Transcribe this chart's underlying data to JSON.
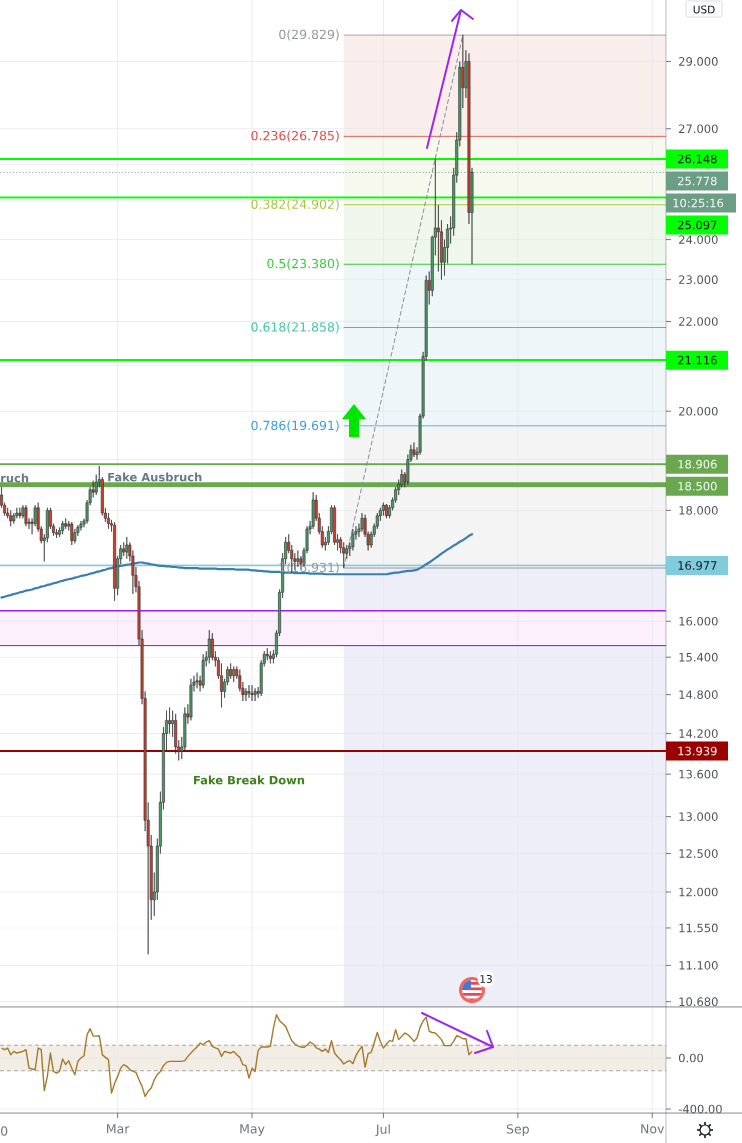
{
  "chart_data": [
    {
      "type": "candlestick",
      "categories": [
        null,
        null,
        null,
        null,
        null,
        null,
        null,
        null,
        null,
        null,
        null,
        null,
        null,
        null,
        null,
        null,
        null,
        null,
        null,
        null,
        null,
        null,
        null,
        null,
        null,
        null,
        null,
        null,
        null,
        null,
        null,
        null,
        null,
        null,
        null,
        null,
        null,
        null,
        null,
        null,
        null,
        null,
        null,
        null,
        null,
        null,
        null,
        null,
        null,
        null,
        null,
        null,
        null,
        null,
        null,
        null,
        null,
        null,
        null,
        null,
        null,
        null,
        null,
        null,
        null,
        null,
        null,
        null,
        null,
        null,
        null,
        null,
        null,
        null,
        null,
        null,
        null,
        null,
        null,
        null,
        null,
        null,
        null,
        null,
        null,
        null,
        null,
        null,
        null,
        null,
        null,
        null,
        null,
        null,
        null,
        null,
        null,
        null,
        null,
        null,
        null,
        null,
        null,
        null,
        null,
        null,
        null,
        null,
        null,
        null,
        null,
        null,
        null,
        null,
        null,
        null,
        null,
        null,
        null,
        null,
        null,
        null,
        null,
        null,
        null,
        null,
        null,
        null,
        null,
        null,
        null,
        null,
        null,
        null,
        null,
        null,
        null,
        null,
        null,
        null,
        null,
        null,
        null,
        null,
        null,
        null,
        null,
        null,
        null,
        null,
        null,
        null,
        null,
        null,
        null,
        null,
        null,
        null,
        null,
        null,
        null,
        null,
        null,
        null,
        null,
        null,
        null,
        null,
        null,
        null,
        null,
        null,
        null,
        null,
        null,
        null,
        null,
        null,
        null,
        null,
        null,
        null,
        null,
        null,
        null,
        null,
        null,
        null,
        null,
        null,
        null,
        null,
        null,
        null,
        null,
        null,
        null,
        null,
        null,
        null,
        null,
        null,
        null,
        null,
        null,
        null,
        null,
        null,
        null,
        null,
        null,
        null,
        null,
        null,
        null,
        null,
        null,
        null
      ],
      "ohlc": [
        [
          18.3,
          18.45,
          18.05,
          18.1
        ],
        [
          18.1,
          18.15,
          17.9,
          17.95
        ],
        [
          17.95,
          18.05,
          17.85,
          17.9
        ],
        [
          17.9,
          18.0,
          17.7,
          17.8
        ],
        [
          17.8,
          17.95,
          17.75,
          17.9
        ],
        [
          17.9,
          18.05,
          17.85,
          17.95
        ],
        [
          17.95,
          18.05,
          17.85,
          17.9
        ],
        [
          17.9,
          18.1,
          17.85,
          18.05
        ],
        [
          18.05,
          18.1,
          17.7,
          17.75
        ],
        [
          17.75,
          17.85,
          17.65,
          17.78
        ],
        [
          17.78,
          17.85,
          17.55,
          17.75
        ],
        [
          17.75,
          18.1,
          17.7,
          18.05
        ],
        [
          18.05,
          18.15,
          17.6,
          17.65
        ],
        [
          17.65,
          17.7,
          17.38,
          17.43
        ],
        [
          17.43,
          17.55,
          17.05,
          17.48
        ],
        [
          17.48,
          18.05,
          17.4,
          18.0
        ],
        [
          18.0,
          18.05,
          17.65,
          17.7
        ],
        [
          17.7,
          17.75,
          17.52,
          17.58
        ],
        [
          17.58,
          17.65,
          17.48,
          17.55
        ],
        [
          17.55,
          17.68,
          17.5,
          17.62
        ],
        [
          17.62,
          17.8,
          17.55,
          17.75
        ],
        [
          17.75,
          17.85,
          17.65,
          17.7
        ],
        [
          17.7,
          17.8,
          17.62,
          17.74
        ],
        [
          17.74,
          17.78,
          17.35,
          17.43
        ],
        [
          17.43,
          17.65,
          17.38,
          17.58
        ],
        [
          17.58,
          17.72,
          17.52,
          17.68
        ],
        [
          17.68,
          17.8,
          17.62,
          17.74
        ],
        [
          17.74,
          17.84,
          17.68,
          17.8
        ],
        [
          17.8,
          18.2,
          17.75,
          18.15
        ],
        [
          18.15,
          18.45,
          18.1,
          18.4
        ],
        [
          18.4,
          18.58,
          18.25,
          18.35
        ],
        [
          18.35,
          18.7,
          18.3,
          18.55
        ],
        [
          18.55,
          18.87,
          18.45,
          18.6
        ],
        [
          18.6,
          18.65,
          17.9,
          17.95
        ],
        [
          17.95,
          18.05,
          17.78,
          17.85
        ],
        [
          17.85,
          17.95,
          17.65,
          17.75
        ],
        [
          17.75,
          17.82,
          17.6,
          17.72
        ],
        [
          17.72,
          17.78,
          16.35,
          16.57
        ],
        [
          16.57,
          17.15,
          16.45,
          17.1
        ],
        [
          17.1,
          17.35,
          17.0,
          17.28
        ],
        [
          17.28,
          17.4,
          17.15,
          17.22
        ],
        [
          17.22,
          17.5,
          17.1,
          17.35
        ],
        [
          17.35,
          17.4,
          17.05,
          17.15
        ],
        [
          17.15,
          17.25,
          16.47,
          16.8
        ],
        [
          16.8,
          16.95,
          16.5,
          16.6
        ],
        [
          16.6,
          16.7,
          15.6,
          15.7
        ],
        [
          15.7,
          15.85,
          14.65,
          14.74
        ],
        [
          14.74,
          14.85,
          12.8,
          12.95
        ],
        [
          12.95,
          13.2,
          11.23,
          12.6
        ],
        [
          12.6,
          12.75,
          11.65,
          11.9
        ],
        [
          11.9,
          12.25,
          11.7,
          12.0
        ],
        [
          12.0,
          12.7,
          11.9,
          12.6
        ],
        [
          12.6,
          13.35,
          12.5,
          13.2
        ],
        [
          13.2,
          14.3,
          13.1,
          14.2
        ],
        [
          14.2,
          14.55,
          13.95,
          14.4
        ],
        [
          14.4,
          14.6,
          14.2,
          14.35
        ],
        [
          14.35,
          14.55,
          14.15,
          14.4
        ],
        [
          14.4,
          14.5,
          13.9,
          14.0
        ],
        [
          14.0,
          14.1,
          13.8,
          13.93
        ],
        [
          13.93,
          14.15,
          13.82,
          14.0
        ],
        [
          14.0,
          14.6,
          13.95,
          14.5
        ],
        [
          14.5,
          14.65,
          14.35,
          14.45
        ],
        [
          14.45,
          15.05,
          14.4,
          14.95
        ],
        [
          14.95,
          15.1,
          14.85,
          15.0
        ],
        [
          15.0,
          15.15,
          14.9,
          15.02
        ],
        [
          15.02,
          15.1,
          14.85,
          14.95
        ],
        [
          14.95,
          15.45,
          14.9,
          15.35
        ],
        [
          15.35,
          15.5,
          15.25,
          15.4
        ],
        [
          15.4,
          15.85,
          15.3,
          15.7
        ],
        [
          15.7,
          15.8,
          15.35,
          15.4
        ],
        [
          15.4,
          15.5,
          15.25,
          15.35
        ],
        [
          15.35,
          15.4,
          15.05,
          15.1
        ],
        [
          15.1,
          15.3,
          14.6,
          14.85
        ],
        [
          14.85,
          15.05,
          14.75,
          15.0
        ],
        [
          15.0,
          15.25,
          14.95,
          15.2
        ],
        [
          15.2,
          15.3,
          15.05,
          15.1
        ],
        [
          15.1,
          15.25,
          15.0,
          15.2
        ],
        [
          15.2,
          15.25,
          15.05,
          15.1
        ],
        [
          15.1,
          15.2,
          14.85,
          14.9
        ],
        [
          14.9,
          15.0,
          14.7,
          14.8
        ],
        [
          14.8,
          14.9,
          14.7,
          14.85
        ],
        [
          14.85,
          14.95,
          14.75,
          14.82
        ],
        [
          14.82,
          14.95,
          14.7,
          14.8
        ],
        [
          14.8,
          14.9,
          14.7,
          14.85
        ],
        [
          14.85,
          14.92,
          14.75,
          14.82
        ],
        [
          14.82,
          15.35,
          14.78,
          15.3
        ],
        [
          15.3,
          15.5,
          15.25,
          15.45
        ],
        [
          15.45,
          15.55,
          15.35,
          15.42
        ],
        [
          15.42,
          15.5,
          15.3,
          15.38
        ],
        [
          15.38,
          15.52,
          15.3,
          15.45
        ],
        [
          15.45,
          15.85,
          15.4,
          15.8
        ],
        [
          15.8,
          16.55,
          15.75,
          16.5
        ],
        [
          16.5,
          17.2,
          16.4,
          17.1
        ],
        [
          17.1,
          17.5,
          17.0,
          17.4
        ],
        [
          17.4,
          17.55,
          17.2,
          17.25
        ],
        [
          17.25,
          17.35,
          16.85,
          17.1
        ],
        [
          17.1,
          17.2,
          16.9,
          17.05
        ],
        [
          17.05,
          17.25,
          16.95,
          17.1
        ],
        [
          17.1,
          17.15,
          16.9,
          17.0
        ],
        [
          17.0,
          17.3,
          16.95,
          17.25
        ],
        [
          17.25,
          17.7,
          17.2,
          17.65
        ],
        [
          17.65,
          17.8,
          17.55,
          17.7
        ],
        [
          17.7,
          18.35,
          17.65,
          18.2
        ],
        [
          18.2,
          18.3,
          17.8,
          17.85
        ],
        [
          17.85,
          17.95,
          17.55,
          17.6
        ],
        [
          17.6,
          17.7,
          17.3,
          17.35
        ],
        [
          17.35,
          17.5,
          17.25,
          17.4
        ],
        [
          17.4,
          17.7,
          17.35,
          17.6
        ],
        [
          17.6,
          18.1,
          17.55,
          18.05
        ],
        [
          18.05,
          18.1,
          17.35,
          17.4
        ],
        [
          17.4,
          17.55,
          17.25,
          17.45
        ],
        [
          17.45,
          17.5,
          17.2,
          17.3
        ],
        [
          17.3,
          17.4,
          16.931,
          17.2
        ],
        [
          17.2,
          17.35,
          17.1,
          17.28
        ],
        [
          17.28,
          17.4,
          17.15,
          17.32
        ],
        [
          17.32,
          17.65,
          17.25,
          17.55
        ],
        [
          17.55,
          17.7,
          17.45,
          17.6
        ],
        [
          17.6,
          17.75,
          17.5,
          17.65
        ],
        [
          17.65,
          17.95,
          17.6,
          17.85
        ],
        [
          17.85,
          17.92,
          17.5,
          17.55
        ],
        [
          17.55,
          17.6,
          17.25,
          17.35
        ],
        [
          17.35,
          17.6,
          17.3,
          17.55
        ],
        [
          17.55,
          17.75,
          17.5,
          17.7
        ],
        [
          17.7,
          17.95,
          17.65,
          17.9
        ],
        [
          17.9,
          18.05,
          17.8,
          18.0
        ],
        [
          18.0,
          18.15,
          17.9,
          18.1
        ],
        [
          18.1,
          18.12,
          17.85,
          17.9
        ],
        [
          17.9,
          18.1,
          17.85,
          18.05
        ],
        [
          18.05,
          18.25,
          18.0,
          18.2
        ],
        [
          18.2,
          18.45,
          18.15,
          18.4
        ],
        [
          18.4,
          18.6,
          18.3,
          18.5
        ],
        [
          18.5,
          18.8,
          18.45,
          18.7
        ],
        [
          18.7,
          18.75,
          18.45,
          18.55
        ],
        [
          18.55,
          19.1,
          18.5,
          19.0
        ],
        [
          19.0,
          19.3,
          18.95,
          19.2
        ],
        [
          19.2,
          19.35,
          19.05,
          19.1
        ],
        [
          19.1,
          19.25,
          19.0,
          19.15
        ],
        [
          19.15,
          19.95,
          19.1,
          19.9
        ],
        [
          19.9,
          21.3,
          19.85,
          21.2
        ],
        [
          21.2,
          23.1,
          21.1,
          22.98
        ],
        [
          22.98,
          23.2,
          22.4,
          22.74
        ],
        [
          22.74,
          24.1,
          22.6,
          24.06
        ],
        [
          24.06,
          26.15,
          23.6,
          24.3
        ],
        [
          24.3,
          24.9,
          23.2,
          24.2
        ],
        [
          24.2,
          24.5,
          23.0,
          23.43
        ],
        [
          23.43,
          24.0,
          23.1,
          23.8
        ],
        [
          23.8,
          24.4,
          23.4,
          24.27
        ],
        [
          24.27,
          24.6,
          23.9,
          24.3
        ],
        [
          24.3,
          25.9,
          24.1,
          25.7
        ],
        [
          25.7,
          26.9,
          25.5,
          26.68
        ],
        [
          26.68,
          29.0,
          26.5,
          28.82
        ],
        [
          28.82,
          29.829,
          27.6,
          28.2
        ],
        [
          28.2,
          29.35,
          27.9,
          29.0
        ],
        [
          29.0,
          29.25,
          24.4,
          24.7
        ],
        [
          24.7,
          25.9,
          23.38,
          25.778
        ],
        null,
        null,
        null,
        null,
        null,
        null,
        null,
        null,
        null,
        null,
        null,
        null,
        null,
        null,
        null,
        null,
        null,
        null,
        null,
        null,
        null,
        null,
        null,
        null,
        null,
        null,
        null,
        null,
        null,
        null,
        null,
        null,
        null,
        null,
        null,
        null,
        null,
        null,
        null,
        null,
        null,
        null,
        null,
        null,
        null,
        null,
        null,
        null,
        null,
        null,
        null,
        null,
        null,
        null,
        null,
        null,
        null,
        null,
        null,
        null,
        null,
        null,
        null
      ],
      "series": [
        {
          "type": "line",
          "color": "#3A7FAD",
          "values": [
            16.41,
            16.42,
            16.44,
            16.45,
            16.47,
            16.48,
            16.5,
            16.51,
            16.53,
            16.54,
            16.55,
            16.57,
            16.58,
            16.6,
            16.61,
            16.63,
            16.64,
            16.66,
            16.67,
            16.69,
            16.7,
            16.72,
            16.73,
            16.74,
            16.76,
            16.77,
            16.79,
            16.8,
            16.81,
            16.83,
            16.84,
            16.86,
            16.87,
            16.89,
            16.9,
            16.92,
            16.93,
            16.95,
            16.96,
            16.97,
            16.98,
            16.99,
            17.0,
            17.01,
            17.02,
            17.03,
            17.03,
            17.02,
            17.01,
            17.0,
            16.99,
            16.98,
            16.97,
            16.97,
            16.96,
            16.96,
            16.95,
            16.95,
            16.94,
            16.94,
            16.93,
            16.93,
            16.93,
            16.93,
            16.93,
            16.92,
            16.92,
            16.92,
            16.92,
            16.92,
            16.92,
            16.91,
            16.91,
            16.91,
            16.91,
            16.91,
            16.91,
            16.9,
            16.9,
            16.9,
            16.9,
            16.9,
            16.89,
            16.89,
            16.88,
            16.88,
            16.87,
            16.87,
            16.86,
            16.86,
            16.86,
            16.86,
            16.85,
            16.85,
            16.85,
            16.85,
            16.84,
            16.84,
            16.84,
            16.84,
            16.84,
            16.83,
            16.83,
            16.83,
            16.83,
            16.83,
            16.82,
            16.82,
            16.82,
            16.82,
            16.82,
            16.82,
            16.82,
            16.82,
            16.82,
            16.82,
            16.82,
            16.82,
            16.82,
            16.82,
            16.82,
            16.82,
            16.82,
            16.82,
            16.82,
            16.82,
            16.82,
            16.83,
            16.84,
            16.85,
            16.85,
            16.86,
            16.87,
            16.88,
            16.88,
            16.89,
            16.9,
            16.93,
            16.96,
            17.0,
            17.03,
            17.07,
            17.11,
            17.15,
            17.19,
            17.23,
            17.27,
            17.3,
            17.34,
            17.37,
            17.41,
            17.44,
            17.48,
            17.52,
            17.55,
            null,
            null,
            null,
            null,
            null,
            null,
            null,
            null,
            null,
            null,
            null,
            null,
            null,
            null,
            null,
            null,
            null,
            null,
            null,
            null,
            null,
            null,
            null,
            null,
            null,
            null,
            null,
            null,
            null,
            null,
            null,
            null,
            null,
            null,
            null,
            null,
            null,
            null,
            null,
            null,
            null,
            null,
            null,
            null,
            null,
            null,
            null,
            null,
            null,
            null,
            null,
            null,
            null,
            null,
            null,
            null,
            null,
            null,
            null,
            null,
            null,
            null,
            null
          ]
        },
        {
          "type": "line",
          "color": "#8C8F96",
          "line_style": "dashed",
          "values": [
            null,
            null,
            null,
            null,
            null,
            null,
            null,
            null,
            null,
            null,
            null,
            null,
            null,
            null,
            null,
            null,
            null,
            null,
            null,
            null,
            null,
            null,
            null,
            null,
            null,
            null,
            null,
            null,
            null,
            null,
            null,
            null,
            null,
            null,
            null,
            null,
            null,
            null,
            null,
            null,
            null,
            null,
            null,
            null,
            null,
            null,
            null,
            null,
            null,
            null,
            null,
            null,
            null,
            null,
            null,
            null,
            null,
            null,
            null,
            null,
            null,
            null,
            null,
            null,
            null,
            null,
            null,
            null,
            null,
            null,
            null,
            null,
            null,
            null,
            null,
            null,
            null,
            null,
            null,
            null,
            null,
            null,
            null,
            null,
            null,
            null,
            null,
            null,
            null,
            null,
            null,
            null,
            null,
            null,
            null,
            null,
            null,
            null,
            null,
            null,
            null,
            null,
            null,
            null,
            null,
            null,
            null,
            null,
            null,
            null,
            null,
            null,
            16.931,
            null,
            null,
            null,
            null,
            null,
            null,
            null,
            null,
            null,
            null,
            null,
            null,
            null,
            null,
            null,
            null,
            null,
            null,
            null,
            null,
            null,
            null,
            null,
            null,
            null,
            null,
            null,
            null,
            null,
            null,
            null,
            null,
            null,
            null,
            null,
            null,
            null,
            null,
            29.829,
            null,
            null,
            null,
            null,
            null,
            null,
            null,
            null,
            null,
            null,
            null,
            null,
            null,
            null,
            null,
            null,
            null,
            null,
            null,
            null,
            null,
            null,
            null,
            null,
            null,
            null,
            null,
            null,
            null,
            null,
            null,
            null,
            null,
            null,
            null,
            null,
            null,
            null,
            null,
            null,
            null,
            null,
            null,
            null,
            null,
            null,
            null,
            null,
            null,
            null,
            null,
            null,
            null,
            null,
            null,
            null,
            null,
            null,
            null,
            null,
            null,
            null,
            null,
            null,
            null,
            null
          ]
        }
      ],
      "ylabel": "USD",
      "log": "y",
      "ylim": [
        10.62,
        30.96
      ],
      "yticks": [
        {
          "value": 29,
          "label": "29.000"
        },
        {
          "value": 27,
          "label": "27.000"
        },
        {
          "value": 26,
          "label": null
        },
        {
          "value": 25,
          "label": null
        },
        {
          "value": 24,
          "label": "24.000"
        },
        {
          "value": 23,
          "label": "23.000"
        },
        {
          "value": 22,
          "label": "22.000"
        },
        {
          "value": 21,
          "label": null
        },
        {
          "value": 20,
          "label": "20.000"
        },
        {
          "value": 19,
          "label": null
        },
        {
          "value": 18,
          "label": "18.000"
        },
        {
          "value": 17,
          "label": null
        },
        {
          "value": 16,
          "label": "16.000"
        },
        {
          "value": 15.4,
          "label": "15.400"
        },
        {
          "value": 14.8,
          "label": "14.800"
        },
        {
          "value": 14.2,
          "label": "14.200"
        },
        {
          "value": 13.6,
          "label": "13.600"
        },
        {
          "value": 13,
          "label": "13.000"
        },
        {
          "value": 12.5,
          "label": "12.500"
        },
        {
          "value": 12,
          "label": "12.000"
        },
        {
          "value": 11.55,
          "label": "11.550"
        },
        {
          "value": 11.1,
          "label": "11.100"
        },
        {
          "value": 10.68,
          "label": "10.680"
        }
      ],
      "grid": true,
      "tick_labels": "y",
      "ref_lines": [
        {
          "axis": "y",
          "value": 29.829,
          "label": "0(29.829)",
          "color": "#9598A1"
        },
        {
          "axis": "y",
          "value": 26.785,
          "label": "0.236(26.785)",
          "color": "#E04B43"
        },
        {
          "axis": "y",
          "value": 24.902,
          "label": "0.382(24.902)",
          "color": "#A5C83C"
        },
        {
          "axis": "y",
          "value": 23.38,
          "label": "0.5(23.380)",
          "color": "#3CC83C"
        },
        {
          "axis": "y",
          "value": 21.858,
          "label": "0.618(21.858)",
          "color": "#3CC8A0"
        },
        {
          "axis": "y",
          "value": 19.691,
          "label": "0.786(19.691)",
          "color": "#3C9FD8"
        },
        {
          "axis": "y",
          "value": 16.931,
          "label": "1(16.931)",
          "color": "#9598A1"
        },
        {
          "axis": "y",
          "value": 26.148,
          "label": "26.148",
          "color": "#00FF00"
        },
        {
          "axis": "y",
          "value": 25.778,
          "label": "25.778",
          "color": "#6B9E84",
          "line_style": "dotted"
        },
        {
          "axis": "y",
          "value": 25.097,
          "label": "25.097",
          "color": "#00FF00"
        },
        {
          "axis": "y",
          "value": 21.116,
          "label": "21.116",
          "color": "#00FF00"
        },
        {
          "axis": "y",
          "value": 18.906,
          "label": "18.906",
          "color": "#6AA84F"
        },
        {
          "axis": "y",
          "value": 18.5,
          "label": "18.500",
          "color": "#6AA84F"
        },
        {
          "axis": "y",
          "value": 16.977,
          "label": "16.977",
          "color": "#80CBDC"
        },
        {
          "axis": "y",
          "value": 13.939,
          "label": "13.939",
          "color": "#990000"
        },
        {
          "axis": "y",
          "value": 16.18,
          "color": "#A020F0"
        },
        {
          "axis": "y",
          "value": 15.59,
          "color": "#A020F0"
        }
      ],
      "bands": [
        {
          "axis": "y",
          "from": 29.829,
          "to": 26.785,
          "color": "#F9EEEC"
        },
        {
          "axis": "y",
          "from": 26.785,
          "to": 24.902,
          "color": "#F7F8EE"
        },
        {
          "axis": "y",
          "from": 24.902,
          "to": 23.38,
          "color": "#EFF7EC"
        },
        {
          "axis": "y",
          "from": 23.38,
          "to": 21.858,
          "color": "#EEF6F7"
        },
        {
          "axis": "y",
          "from": 21.858,
          "to": 19.691,
          "color": "#EEF6F9"
        },
        {
          "axis": "y",
          "from": 19.691,
          "to": 16.931,
          "color": "#F4F4F5"
        },
        {
          "axis": "y",
          "from": 16.931,
          "to": 10.62,
          "color": "#EEEEF8"
        },
        {
          "axis": "y",
          "from": 16.18,
          "to": 15.59,
          "color": "#FDF0FD"
        }
      ],
      "annotations": [
        "Fake Ausbruch",
        "Fake Break Down",
        "ruch",
        "10:25:16",
        "13"
      ]
    },
    {
      "type": "line",
      "categories": [
        null,
        null,
        null,
        null,
        null,
        null,
        null,
        null,
        null,
        null,
        null,
        null,
        null,
        null,
        null,
        null,
        null,
        null,
        null,
        null,
        null,
        null,
        null,
        null,
        null,
        null,
        null,
        null,
        null,
        null,
        null,
        null,
        null,
        null,
        null,
        null,
        null,
        null,
        "Mar",
        null,
        null,
        null,
        null,
        null,
        null,
        null,
        null,
        null,
        null,
        null,
        null,
        null,
        null,
        null,
        null,
        null,
        null,
        null,
        null,
        null,
        null,
        null,
        null,
        null,
        null,
        null,
        null,
        null,
        null,
        null,
        null,
        null,
        null,
        null,
        null,
        null,
        null,
        null,
        null,
        null,
        null,
        null,
        "May",
        null,
        null,
        null,
        null,
        null,
        null,
        null,
        null,
        null,
        null,
        null,
        null,
        null,
        null,
        null,
        null,
        null,
        null,
        null,
        null,
        null,
        null,
        null,
        null,
        null,
        null,
        null,
        null,
        null,
        null,
        null,
        null,
        null,
        null,
        null,
        null,
        null,
        null,
        null,
        null,
        null,
        null,
        "Jul",
        null,
        null,
        null,
        null,
        null,
        null,
        null,
        null,
        null,
        null,
        null,
        null,
        null,
        null,
        null,
        null,
        null,
        null,
        null,
        null,
        null,
        null,
        null,
        null,
        null,
        null,
        null,
        null,
        null,
        null,
        null,
        null,
        null,
        null,
        null,
        null,
        null,
        null,
        null,
        null,
        null,
        null,
        null,
        "Sep",
        null,
        null,
        null,
        null,
        null,
        null,
        null,
        null,
        null,
        null,
        null,
        null,
        null,
        null,
        null,
        null,
        null,
        null,
        null,
        null,
        null,
        null,
        null,
        null,
        null,
        null,
        null,
        null,
        null,
        null,
        null,
        null,
        null,
        null,
        null,
        null,
        null,
        null,
        null,
        null,
        null,
        null,
        null,
        "Nov",
        null,
        null,
        null,
        null
      ],
      "values": [
        78,
        65,
        78,
        26,
        52,
        39,
        45,
        52,
        65,
        -79,
        -86,
        -92,
        78,
        65,
        -256,
        -144,
        39,
        -105,
        -118,
        -105,
        -8,
        -52,
        -21,
        -80,
        -131,
        -26,
        0,
        18,
        183,
        230,
        172,
        172,
        175,
        26,
        5,
        -13,
        -275,
        -200,
        -144,
        -79,
        -52,
        -65,
        -90,
        -105,
        -113,
        -170,
        -222,
        -301,
        -260,
        -235,
        -170,
        -130,
        -105,
        -60,
        -34,
        -26,
        -26,
        -26,
        -26,
        -26,
        -20,
        13,
        40,
        65,
        86,
        117,
        104,
        125,
        136,
        91,
        80,
        70,
        13,
        52,
        45,
        39,
        52,
        26,
        5,
        -52,
        -60,
        -157,
        -79,
        -105,
        60,
        86,
        86,
        86,
        91,
        235,
        340,
        293,
        270,
        248,
        190,
        136,
        110,
        95,
        86,
        84,
        100,
        125,
        110,
        80,
        70,
        52,
        70,
        44,
        136,
        39,
        10,
        -13,
        -47,
        -30,
        -21,
        -44,
        18,
        60,
        91,
        -71,
        34,
        44,
        120,
        201,
        130,
        78,
        110,
        136,
        130,
        222,
        144,
        170,
        196,
        183,
        160,
        130,
        157,
        240,
        290,
        321,
        209,
        200,
        196,
        170,
        144,
        97,
        97,
        97,
        130,
        175,
        165,
        151,
        151,
        26,
        52,
        null,
        null,
        null,
        null,
        null,
        null,
        null,
        null,
        null,
        null,
        null,
        null,
        null,
        null,
        null,
        null,
        null,
        null,
        null,
        null,
        null,
        null,
        null,
        null,
        null,
        null,
        null,
        null,
        null,
        null,
        null,
        null,
        null,
        null,
        null,
        null,
        null,
        null,
        null,
        null,
        null,
        null,
        null,
        null,
        null,
        null,
        null,
        null,
        null,
        null,
        null,
        null,
        null,
        null,
        null,
        null,
        null,
        null,
        null,
        null,
        null,
        null,
        null
      ],
      "color": "#A67A2C",
      "ylim": [
        -431,
        400
      ],
      "yticks": [
        {
          "value": 0,
          "label": "0.00"
        },
        {
          "value": -400,
          "label": "-400.00"
        }
      ],
      "grid": true,
      "bands": [
        {
          "axis": "y",
          "from": -100,
          "to": 100,
          "color": "#F2EDE5"
        }
      ],
      "ref_lines": [
        {
          "axis": "y",
          "value": 100,
          "color": "#A8A8A8",
          "line_style": "dashed"
        },
        {
          "axis": "y",
          "value": -100,
          "color": "#A8A8A8",
          "line_style": "dashed"
        }
      ],
      "annotations": [
        "0"
      ]
    }
  ]
}
